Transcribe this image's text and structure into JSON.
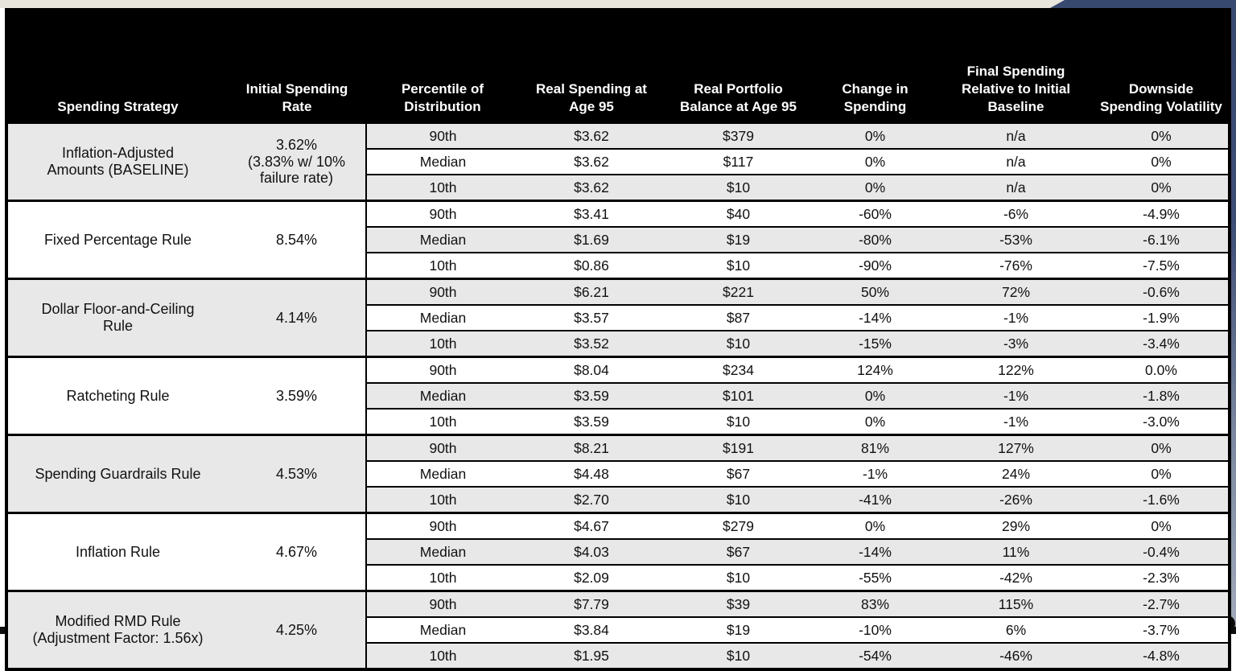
{
  "page": {
    "colors": {
      "header_bg": "#000000",
      "row_shade": "#e8e8e8",
      "row_plain": "#ffffff",
      "top_strip_beige": "#e8e5dd",
      "accent_navy": "#384970",
      "edge_blue_gray": "#a3abbb",
      "photo_teal": "#3aa98a",
      "photo_blue": "#2f5cae"
    }
  },
  "chart_data": {
    "type": "table",
    "columns": [
      "Spending Strategy",
      "Initial Spending Rate",
      "Percentile of Distribution",
      "Real Spending at Age 95",
      "Real Portfolio Balance at Age 95",
      "Change in Spending",
      "Final Spending Relative to Initial Baseline",
      "Downside Spending Volatility"
    ],
    "groups": [
      {
        "strategy_lines": [
          "Inflation-Adjusted",
          "Amounts (BASELINE)"
        ],
        "rate": "3.62%",
        "rate_note_lines": [
          "(3.83% w/ 10%",
          "failure rate)"
        ],
        "rows": [
          {
            "percentile": "90th",
            "real_spending": "$3.62",
            "portfolio_balance": "$379",
            "change_in_spending": "0%",
            "final_vs_baseline": "n/a",
            "downside_volatility": "0%"
          },
          {
            "percentile": "Median",
            "real_spending": "$3.62",
            "portfolio_balance": "$117",
            "change_in_spending": "0%",
            "final_vs_baseline": "n/a",
            "downside_volatility": "0%"
          },
          {
            "percentile": "10th",
            "real_spending": "$3.62",
            "portfolio_balance": "$10",
            "change_in_spending": "0%",
            "final_vs_baseline": "n/a",
            "downside_volatility": "0%"
          }
        ]
      },
      {
        "strategy_lines": [
          "Fixed Percentage Rule"
        ],
        "rate": "8.54%",
        "rate_note_lines": [],
        "rows": [
          {
            "percentile": "90th",
            "real_spending": "$3.41",
            "portfolio_balance": "$40",
            "change_in_spending": "-60%",
            "final_vs_baseline": "-6%",
            "downside_volatility": "-4.9%"
          },
          {
            "percentile": "Median",
            "real_spending": "$1.69",
            "portfolio_balance": "$19",
            "change_in_spending": "-80%",
            "final_vs_baseline": "-53%",
            "downside_volatility": "-6.1%"
          },
          {
            "percentile": "10th",
            "real_spending": "$0.86",
            "portfolio_balance": "$10",
            "change_in_spending": "-90%",
            "final_vs_baseline": "-76%",
            "downside_volatility": "-7.5%"
          }
        ]
      },
      {
        "strategy_lines": [
          "Dollar Floor-and-Ceiling",
          "Rule"
        ],
        "rate": "4.14%",
        "rate_note_lines": [],
        "rows": [
          {
            "percentile": "90th",
            "real_spending": "$6.21",
            "portfolio_balance": "$221",
            "change_in_spending": "50%",
            "final_vs_baseline": "72%",
            "downside_volatility": "-0.6%"
          },
          {
            "percentile": "Median",
            "real_spending": "$3.57",
            "portfolio_balance": "$87",
            "change_in_spending": "-14%",
            "final_vs_baseline": "-1%",
            "downside_volatility": "-1.9%"
          },
          {
            "percentile": "10th",
            "real_spending": "$3.52",
            "portfolio_balance": "$10",
            "change_in_spending": "-15%",
            "final_vs_baseline": "-3%",
            "downside_volatility": "-3.4%"
          }
        ]
      },
      {
        "strategy_lines": [
          "Ratcheting Rule"
        ],
        "rate": "3.59%",
        "rate_note_lines": [],
        "rows": [
          {
            "percentile": "90th",
            "real_spending": "$8.04",
            "portfolio_balance": "$234",
            "change_in_spending": "124%",
            "final_vs_baseline": "122%",
            "downside_volatility": "0.0%"
          },
          {
            "percentile": "Median",
            "real_spending": "$3.59",
            "portfolio_balance": "$101",
            "change_in_spending": "0%",
            "final_vs_baseline": "-1%",
            "downside_volatility": "-1.8%"
          },
          {
            "percentile": "10th",
            "real_spending": "$3.59",
            "portfolio_balance": "$10",
            "change_in_spending": "0%",
            "final_vs_baseline": "-1%",
            "downside_volatility": "-3.0%"
          }
        ]
      },
      {
        "strategy_lines": [
          "Spending Guardrails Rule"
        ],
        "rate": "4.53%",
        "rate_note_lines": [],
        "rows": [
          {
            "percentile": "90th",
            "real_spending": "$8.21",
            "portfolio_balance": "$191",
            "change_in_spending": "81%",
            "final_vs_baseline": "127%",
            "downside_volatility": "0%"
          },
          {
            "percentile": "Median",
            "real_spending": "$4.48",
            "portfolio_balance": "$67",
            "change_in_spending": "-1%",
            "final_vs_baseline": "24%",
            "downside_volatility": "0%"
          },
          {
            "percentile": "10th",
            "real_spending": "$2.70",
            "portfolio_balance": "$10",
            "change_in_spending": "-41%",
            "final_vs_baseline": "-26%",
            "downside_volatility": "-1.6%"
          }
        ]
      },
      {
        "strategy_lines": [
          "Inflation Rule"
        ],
        "rate": "4.67%",
        "rate_note_lines": [],
        "rows": [
          {
            "percentile": "90th",
            "real_spending": "$4.67",
            "portfolio_balance": "$279",
            "change_in_spending": "0%",
            "final_vs_baseline": "29%",
            "downside_volatility": "0%"
          },
          {
            "percentile": "Median",
            "real_spending": "$4.03",
            "portfolio_balance": "$67",
            "change_in_spending": "-14%",
            "final_vs_baseline": "11%",
            "downside_volatility": "-0.4%"
          },
          {
            "percentile": "10th",
            "real_spending": "$2.09",
            "portfolio_balance": "$10",
            "change_in_spending": "-55%",
            "final_vs_baseline": "-42%",
            "downside_volatility": "-2.3%"
          }
        ]
      },
      {
        "strategy_lines": [
          "Modified RMD Rule",
          "(Adjustment Factor: 1.56x)"
        ],
        "rate": "4.25%",
        "rate_note_lines": [],
        "rows": [
          {
            "percentile": "90th",
            "real_spending": "$7.79",
            "portfolio_balance": "$39",
            "change_in_spending": "83%",
            "final_vs_baseline": "115%",
            "downside_volatility": "-2.7%"
          },
          {
            "percentile": "Median",
            "real_spending": "$3.84",
            "portfolio_balance": "$19",
            "change_in_spending": "-10%",
            "final_vs_baseline": "6%",
            "downside_volatility": "-3.7%"
          },
          {
            "percentile": "10th",
            "real_spending": "$1.95",
            "portfolio_balance": "$10",
            "change_in_spending": "-54%",
            "final_vs_baseline": "-46%",
            "downside_volatility": "-4.8%"
          }
        ]
      }
    ]
  }
}
